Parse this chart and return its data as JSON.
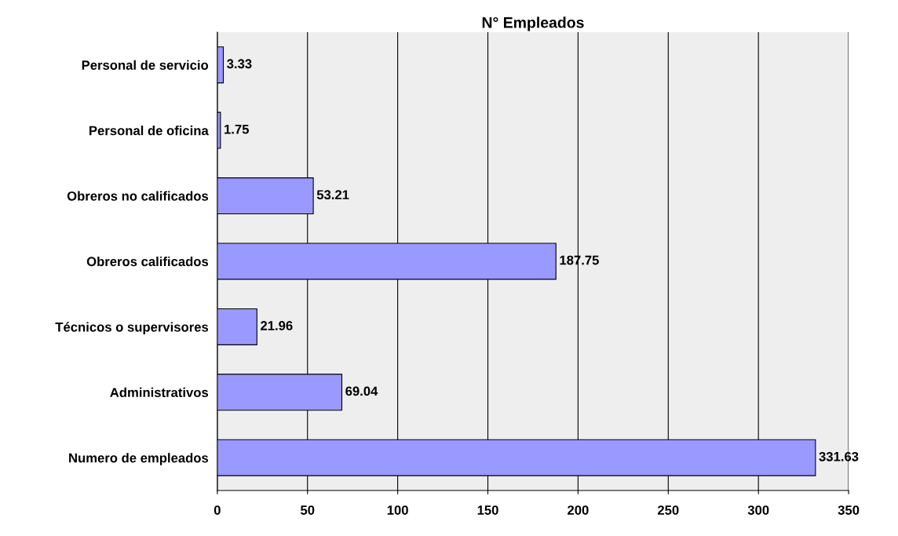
{
  "chart_data": {
    "type": "bar",
    "orientation": "horizontal",
    "title": "N° Empleados",
    "categories": [
      "Personal de servicio",
      "Personal de oficina",
      "Obreros no calificados",
      "Obreros calificados",
      "Técnicos o supervisores",
      "Administrativos",
      "Numero de empleados"
    ],
    "values": [
      3.33,
      1.75,
      53.21,
      187.75,
      21.96,
      69.04,
      331.63
    ],
    "color": "#9999ff",
    "xlim": [
      0,
      350
    ],
    "xticks": [
      0,
      50,
      100,
      150,
      200,
      250,
      300,
      350
    ],
    "grid": "x",
    "data_labels": true
  }
}
